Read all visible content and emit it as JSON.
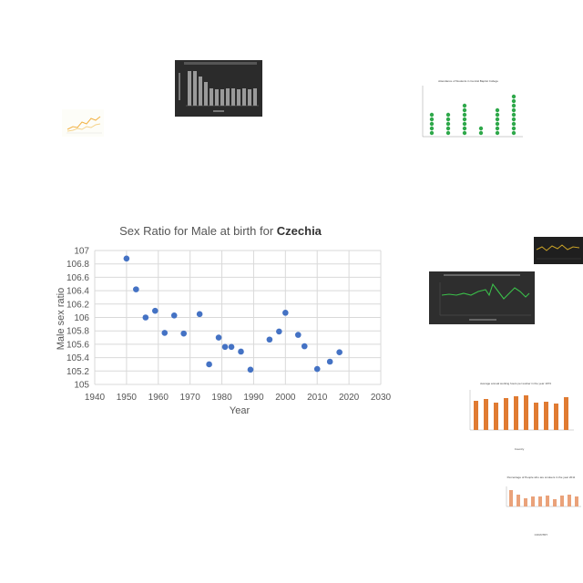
{
  "chart_data": {
    "type": "scatter",
    "title_prefix": "Sex Ratio for Male at birth for",
    "title_country": "Czechia",
    "xlabel": "Year",
    "ylabel": "Male sex ratio",
    "xlim": [
      1940,
      2030
    ],
    "ylim": [
      105,
      107
    ],
    "x_ticks": [
      1940,
      1950,
      1960,
      1970,
      1980,
      1990,
      2000,
      2010,
      2020,
      2030
    ],
    "y_ticks": [
      105,
      105.2,
      105.4,
      105.6,
      105.8,
      106,
      106.2,
      106.4,
      106.6,
      106.8,
      107
    ],
    "grid": true,
    "marker_color": "#4472C4",
    "points": [
      {
        "x": 1950,
        "y": 106.88
      },
      {
        "x": 1953,
        "y": 106.42
      },
      {
        "x": 1956,
        "y": 106.0
      },
      {
        "x": 1959,
        "y": 106.1
      },
      {
        "x": 1962,
        "y": 105.77
      },
      {
        "x": 1965,
        "y": 106.03
      },
      {
        "x": 1968,
        "y": 105.76
      },
      {
        "x": 1973,
        "y": 106.05
      },
      {
        "x": 1976,
        "y": 105.3
      },
      {
        "x": 1979,
        "y": 105.7
      },
      {
        "x": 1981,
        "y": 105.56
      },
      {
        "x": 1983,
        "y": 105.56
      },
      {
        "x": 1986,
        "y": 105.49
      },
      {
        "x": 1989,
        "y": 105.22
      },
      {
        "x": 1995,
        "y": 105.67
      },
      {
        "x": 1998,
        "y": 105.79
      },
      {
        "x": 2000,
        "y": 106.07
      },
      {
        "x": 2004,
        "y": 105.74
      },
      {
        "x": 2006,
        "y": 105.57
      },
      {
        "x": 2010,
        "y": 105.23
      },
      {
        "x": 2014,
        "y": 105.34
      },
      {
        "x": 2017,
        "y": 105.48
      }
    ]
  },
  "thumbnails": {
    "students_title": "Attendance of Students in Central Baptist College",
    "working_hours_title": "Average annual working hours per worker in the year 1973",
    "working_hours_xlabel": "Country",
    "people_title": "Percentage of People who are smokers in the year 2011",
    "people_xlabel": "COUNTRY",
    "accent_green": "#2ea84a",
    "accent_orange": "#e07b32"
  }
}
